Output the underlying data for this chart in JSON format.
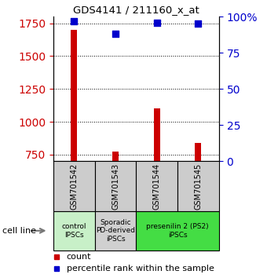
{
  "title": "GDS4141 / 211160_x_at",
  "samples": [
    "GSM701542",
    "GSM701543",
    "GSM701544",
    "GSM701545"
  ],
  "counts": [
    1700,
    775,
    1100,
    840
  ],
  "percentiles": [
    97,
    88,
    96,
    95
  ],
  "ylim_left": [
    700,
    1800
  ],
  "ylim_right": [
    0,
    100
  ],
  "yticks_left": [
    750,
    1000,
    1250,
    1500,
    1750
  ],
  "yticks_right": [
    0,
    25,
    50,
    75,
    100
  ],
  "groups": [
    {
      "label": "control\nIPSCs",
      "start": 0,
      "end": 1,
      "color": "#c8f0c8"
    },
    {
      "label": "Sporadic\nPD-derived\niPSCs",
      "start": 1,
      "end": 2,
      "color": "#d0d0d0"
    },
    {
      "label": "presenilin 2 (PS2)\niPSCs",
      "start": 2,
      "end": 4,
      "color": "#44dd44"
    }
  ],
  "bar_color": "#cc0000",
  "dot_color": "#0000cc",
  "bar_width": 0.15,
  "dot_size": 40,
  "left_label_color": "#cc0000",
  "right_label_color": "#0000cc",
  "legend_red_label": "count",
  "legend_blue_label": "percentile rank within the sample",
  "cell_line_label": "cell line"
}
